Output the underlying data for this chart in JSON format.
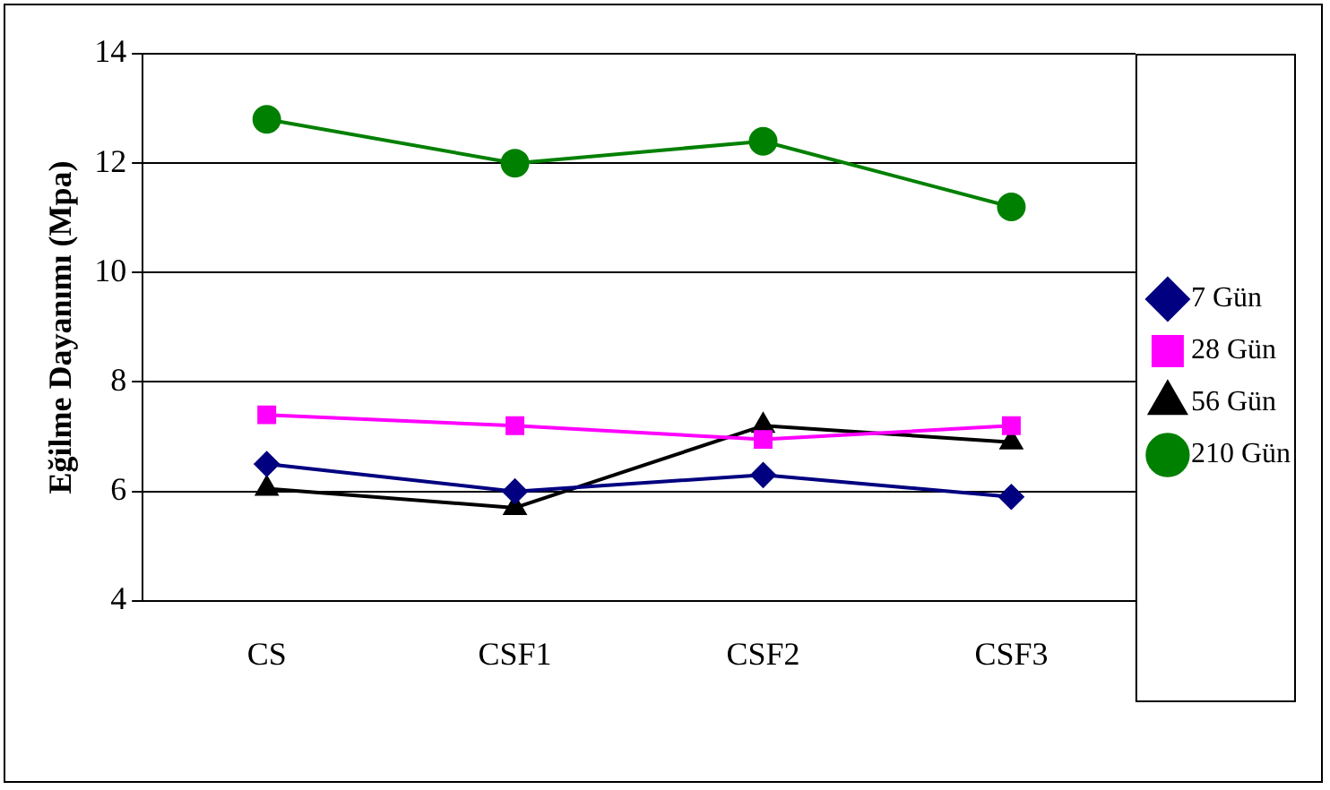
{
  "chart_data": {
    "type": "line",
    "ylabel": "Eğilme Dayanımı (Mpa)",
    "categories": [
      "CS",
      "CSF1",
      "CSF2",
      "CSF3"
    ],
    "series": [
      {
        "name": "7 Gün",
        "color": "#000080",
        "marker": "diamond",
        "values": [
          6.5,
          6.0,
          6.3,
          5.9
        ]
      },
      {
        "name": "28 Gün",
        "color": "#ff00ff",
        "marker": "square",
        "values": [
          7.4,
          7.2,
          6.95,
          7.2
        ]
      },
      {
        "name": "56 Gün",
        "color": "#000000",
        "marker": "triangle",
        "values": [
          6.05,
          5.7,
          7.2,
          6.9
        ]
      },
      {
        "name": "210 Gün",
        "color": "#008000",
        "marker": "circle",
        "values": [
          12.8,
          12.0,
          12.4,
          11.2
        ]
      }
    ],
    "ylim": [
      4,
      14
    ],
    "yticks": [
      4,
      6,
      8,
      10,
      12,
      14
    ],
    "grid": "y",
    "legend": "right",
    "line_style": "solid"
  }
}
